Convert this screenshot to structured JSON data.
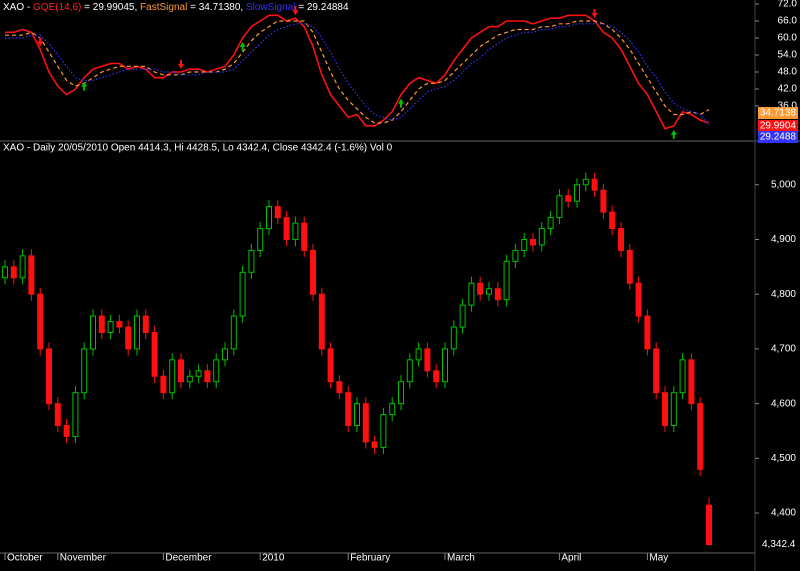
{
  "chart_data": [
    {
      "type": "line",
      "header_parts": [
        "XAO - ",
        "GQE(14,6)",
        " = 29.99045, ",
        "FastSignal",
        " = 34.71380, ",
        "SlowSignal",
        " = 29.24884"
      ],
      "header_colors": [
        "#ffffff",
        "#ff2020",
        "#ffffff",
        "#ff9933",
        "#ffffff",
        "#3333ff",
        "#ffffff"
      ],
      "ylim": [
        24,
        72
      ],
      "yticks": [
        {
          "value": 72,
          "label": "72.0"
        },
        {
          "value": 66,
          "label": "66.0"
        },
        {
          "value": 60,
          "label": "60.0"
        },
        {
          "value": 54,
          "label": "54.0"
        },
        {
          "value": 48,
          "label": "48.0"
        },
        {
          "value": 42,
          "label": "42.0"
        },
        {
          "value": 36,
          "label": "36.0"
        }
      ],
      "series": [
        {
          "name": "GQE(14,6)",
          "color": "#ff1010",
          "style": "solid",
          "last_label": "29.9904",
          "values": [
            62,
            62,
            63,
            62,
            56,
            48,
            43,
            40,
            42,
            46,
            49,
            50,
            51,
            51,
            49,
            50,
            49,
            46,
            46,
            48,
            48,
            49,
            49,
            48,
            49,
            50,
            54,
            60,
            64,
            66,
            68,
            68,
            66,
            67,
            64,
            57,
            47,
            40,
            36,
            32,
            33,
            29,
            29,
            31,
            34,
            40,
            44,
            46,
            45,
            44,
            47,
            52,
            56,
            60,
            62,
            64,
            64,
            66,
            66,
            66,
            65,
            66,
            67,
            67,
            68,
            68,
            68,
            66,
            62,
            60,
            56,
            50,
            44,
            40,
            34,
            28,
            29,
            34,
            33,
            31,
            29.99045
          ]
        },
        {
          "name": "FastSignal",
          "color": "#ff9933",
          "style": "dashed",
          "last_label": "34.7138",
          "values": [
            61,
            61,
            61,
            62,
            60,
            55,
            50,
            45,
            43,
            44,
            46,
            48,
            49,
            50,
            50,
            50,
            50,
            48,
            47,
            47,
            47,
            48,
            48,
            48,
            48,
            49,
            51,
            55,
            59,
            62,
            64,
            66,
            66,
            66,
            66,
            62,
            55,
            48,
            42,
            38,
            35,
            32,
            30,
            30,
            31,
            34,
            38,
            42,
            44,
            44,
            45,
            48,
            51,
            54,
            57,
            59,
            61,
            62,
            63,
            63,
            63,
            64,
            64,
            65,
            65,
            66,
            66,
            66,
            65,
            63,
            60,
            56,
            51,
            46,
            41,
            36,
            33,
            33,
            34,
            33,
            34.7138
          ]
        },
        {
          "name": "SlowSignal",
          "color": "#3333ff",
          "style": "dotted",
          "last_label": "29.2488",
          "values": [
            60,
            60,
            60,
            61,
            61,
            58,
            54,
            50,
            46,
            45,
            45,
            46,
            47,
            48,
            49,
            49,
            49,
            49,
            48,
            48,
            47,
            47,
            47,
            48,
            48,
            48,
            49,
            52,
            55,
            58,
            61,
            63,
            64,
            65,
            65,
            64,
            60,
            55,
            49,
            44,
            40,
            36,
            33,
            32,
            31,
            32,
            35,
            38,
            41,
            42,
            43,
            45,
            48,
            51,
            53,
            56,
            58,
            60,
            61,
            62,
            62,
            63,
            63,
            64,
            64,
            65,
            65,
            65,
            65,
            64,
            62,
            59,
            55,
            50,
            46,
            41,
            37,
            35,
            34,
            33,
            29.24884
          ]
        }
      ],
      "signals": [
        {
          "index": 4,
          "direction": "down"
        },
        {
          "index": 9,
          "direction": "up"
        },
        {
          "index": 20,
          "direction": "down"
        },
        {
          "index": 27,
          "direction": "up"
        },
        {
          "index": 33,
          "direction": "down"
        },
        {
          "index": 45,
          "direction": "up"
        },
        {
          "index": 67,
          "direction": "down"
        },
        {
          "index": 76,
          "direction": "up"
        }
      ]
    },
    {
      "type": "candlestick",
      "title": "XAO - Daily 20/05/2010 Open 4414.3, Hi 4428.5, Lo 4342.4, Close 4342.4 (-1.6%) Vol 0",
      "up_color": "#00c000",
      "down_color": "#ff1010",
      "ylim": [
        4327,
        5080
      ],
      "yticks": [
        {
          "value": 5000,
          "label": "5,000"
        },
        {
          "value": 4900,
          "label": "4,900"
        },
        {
          "value": 4800,
          "label": "4,800"
        },
        {
          "value": 4700,
          "label": "4,700"
        },
        {
          "value": 4600,
          "label": "4,600"
        },
        {
          "value": 4500,
          "label": "4,500"
        },
        {
          "value": 4400,
          "label": "4,400"
        }
      ],
      "last_price": {
        "value": 4342.4,
        "label": "4,342.4"
      },
      "x_labels": [
        {
          "index": 0,
          "label": "October"
        },
        {
          "index": 6,
          "label": "November"
        },
        {
          "index": 18,
          "label": "December"
        },
        {
          "index": 29,
          "label": "2010"
        },
        {
          "index": 39,
          "label": "February"
        },
        {
          "index": 50,
          "label": "March"
        },
        {
          "index": 63,
          "label": "April"
        },
        {
          "index": 73,
          "label": "May"
        }
      ],
      "candles": [
        [
          4830,
          4862,
          4818,
          4850
        ],
        [
          4850,
          4862,
          4818,
          4830
        ],
        [
          4830,
          4882,
          4818,
          4870
        ],
        [
          4870,
          4882,
          4788,
          4800
        ],
        [
          4800,
          4812,
          4688,
          4700
        ],
        [
          4700,
          4712,
          4588,
          4600
        ],
        [
          4600,
          4612,
          4548,
          4560
        ],
        [
          4560,
          4572,
          4528,
          4540
        ],
        [
          4540,
          4632,
          4528,
          4620
        ],
        [
          4620,
          4712,
          4608,
          4700
        ],
        [
          4700,
          4772,
          4688,
          4760
        ],
        [
          4760,
          4772,
          4718,
          4730
        ],
        [
          4730,
          4762,
          4718,
          4750
        ],
        [
          4750,
          4762,
          4728,
          4740
        ],
        [
          4740,
          4752,
          4688,
          4700
        ],
        [
          4700,
          4772,
          4688,
          4760
        ],
        [
          4760,
          4772,
          4718,
          4730
        ],
        [
          4730,
          4742,
          4638,
          4650
        ],
        [
          4650,
          4662,
          4608,
          4620
        ],
        [
          4620,
          4692,
          4608,
          4680
        ],
        [
          4680,
          4692,
          4628,
          4640
        ],
        [
          4640,
          4662,
          4628,
          4650
        ],
        [
          4650,
          4672,
          4638,
          4660
        ],
        [
          4660,
          4672,
          4628,
          4640
        ],
        [
          4640,
          4692,
          4628,
          4680
        ],
        [
          4680,
          4712,
          4668,
          4700
        ],
        [
          4700,
          4772,
          4688,
          4760
        ],
        [
          4760,
          4852,
          4748,
          4840
        ],
        [
          4840,
          4892,
          4828,
          4880
        ],
        [
          4880,
          4932,
          4868,
          4920
        ],
        [
          4920,
          4972,
          4908,
          4960
        ],
        [
          4960,
          4972,
          4928,
          4940
        ],
        [
          4940,
          4952,
          4888,
          4900
        ],
        [
          4900,
          4942,
          4888,
          4930
        ],
        [
          4930,
          4942,
          4868,
          4880
        ],
        [
          4880,
          4892,
          4788,
          4800
        ],
        [
          4800,
          4812,
          4688,
          4700
        ],
        [
          4700,
          4712,
          4628,
          4640
        ],
        [
          4640,
          4652,
          4608,
          4620
        ],
        [
          4620,
          4632,
          4548,
          4560
        ],
        [
          4560,
          4612,
          4548,
          4600
        ],
        [
          4600,
          4612,
          4518,
          4530
        ],
        [
          4530,
          4542,
          4508,
          4520
        ],
        [
          4520,
          4592,
          4508,
          4580
        ],
        [
          4580,
          4612,
          4568,
          4600
        ],
        [
          4600,
          4652,
          4588,
          4640
        ],
        [
          4640,
          4692,
          4628,
          4680
        ],
        [
          4680,
          4712,
          4668,
          4700
        ],
        [
          4700,
          4712,
          4648,
          4660
        ],
        [
          4660,
          4672,
          4628,
          4640
        ],
        [
          4640,
          4712,
          4628,
          4700
        ],
        [
          4700,
          4752,
          4688,
          4740
        ],
        [
          4740,
          4792,
          4728,
          4780
        ],
        [
          4780,
          4832,
          4768,
          4820
        ],
        [
          4820,
          4832,
          4788,
          4800
        ],
        [
          4800,
          4822,
          4788,
          4810
        ],
        [
          4810,
          4822,
          4778,
          4790
        ],
        [
          4790,
          4872,
          4778,
          4860
        ],
        [
          4860,
          4892,
          4848,
          4880
        ],
        [
          4880,
          4912,
          4868,
          4900
        ],
        [
          4900,
          4912,
          4878,
          4890
        ],
        [
          4890,
          4932,
          4878,
          4920
        ],
        [
          4920,
          4952,
          4908,
          4940
        ],
        [
          4940,
          4992,
          4928,
          4980
        ],
        [
          4980,
          4992,
          4958,
          4970
        ],
        [
          4970,
          5012,
          4958,
          5000
        ],
        [
          5000,
          5022,
          4988,
          5010
        ],
        [
          5010,
          5022,
          4978,
          4990
        ],
        [
          4990,
          5002,
          4938,
          4950
        ],
        [
          4950,
          4962,
          4908,
          4920
        ],
        [
          4920,
          4932,
          4868,
          4880
        ],
        [
          4880,
          4892,
          4808,
          4820
        ],
        [
          4820,
          4832,
          4748,
          4760
        ],
        [
          4760,
          4772,
          4688,
          4700
        ],
        [
          4700,
          4712,
          4608,
          4620
        ],
        [
          4620,
          4632,
          4548,
          4560
        ],
        [
          4560,
          4632,
          4548,
          4620
        ],
        [
          4620,
          4692,
          4608,
          4680
        ],
        [
          4680,
          4692,
          4588,
          4600
        ],
        [
          4600,
          4612,
          4468,
          4480
        ],
        [
          4414.3,
          4428.5,
          4342.4,
          4342.4
        ]
      ]
    }
  ]
}
